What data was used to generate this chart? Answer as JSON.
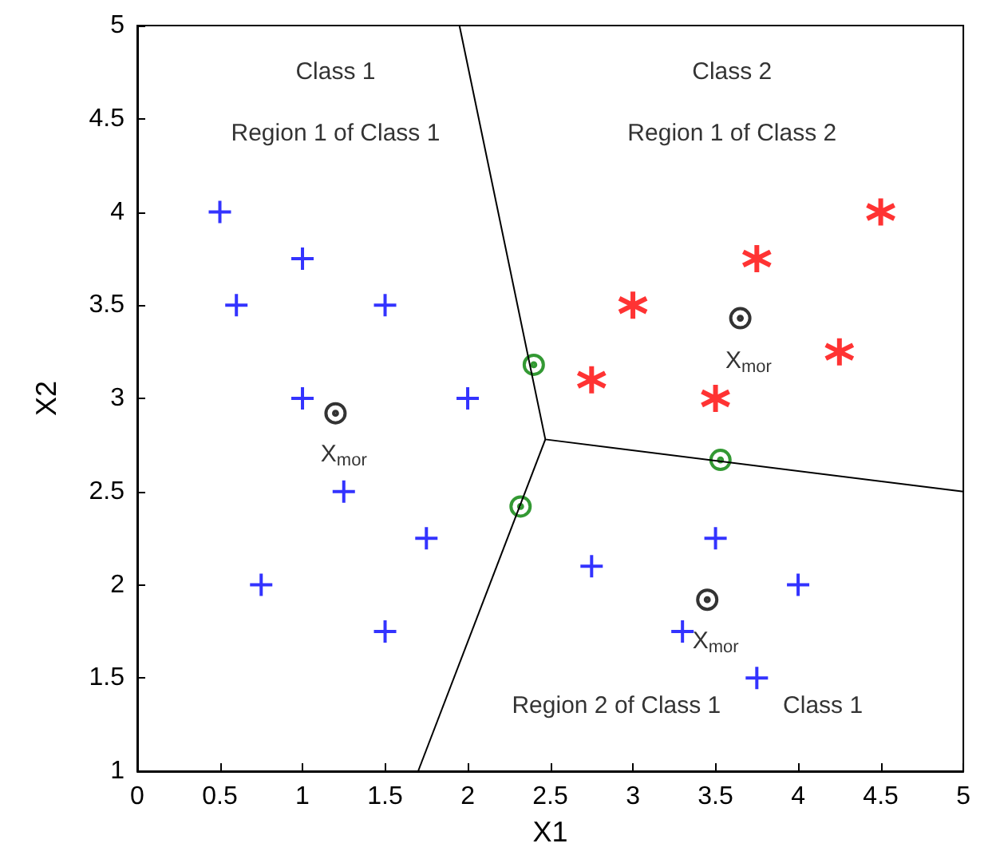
{
  "chart_data": {
    "type": "scatter",
    "xlabel": "X1",
    "ylabel": "X2",
    "xlim": [
      0,
      5
    ],
    "ylim": [
      1,
      5
    ],
    "xticks": [
      0,
      0.5,
      1,
      1.5,
      2,
      2.5,
      3,
      3.5,
      4,
      4.5,
      5
    ],
    "yticks": [
      1,
      1.5,
      2,
      2.5,
      3,
      3.5,
      4,
      4.5,
      5
    ],
    "grid": false,
    "series": [
      {
        "color": "#0000ff",
        "marker": "cross",
        "x": [
          0.5,
          1,
          0.6,
          1.5,
          1,
          2,
          1.25,
          1.75,
          0.75,
          1.5,
          2.75,
          3.5,
          4,
          3.3,
          3.75
        ],
        "values": [
          4,
          3.75,
          3.5,
          3.5,
          3,
          3,
          2.5,
          2.25,
          2,
          1.75,
          2.1,
          2.25,
          2,
          1.75,
          1.5
        ]
      },
      {
        "color": "#ff0000",
        "x": [
          2.75,
          3,
          3.75,
          4.5,
          4.25,
          3.5
        ],
        "values": [
          3.1,
          3.5,
          3.75,
          4,
          3.25,
          3
        ]
      },
      {
        "color": "#000000",
        "marker": "circle",
        "x": [
          1.2,
          3.65,
          3.45
        ],
        "values": [
          2.92,
          3.43,
          1.92
        ]
      },
      {
        "color": "#008000",
        "marker": "circle",
        "x": [
          2.4,
          2.32,
          3.53
        ],
        "values": [
          3.18,
          2.42,
          2.67
        ]
      },
      {
        "type": "line",
        "color": "#000000",
        "marker": "none",
        "x": [
          1.95,
          2.47,
          5
        ],
        "values": [
          5,
          2.78,
          2.5
        ]
      },
      {
        "type": "line",
        "color": "#000000",
        "marker": "none",
        "x": [
          2.47,
          1.7
        ],
        "values": [
          2.78,
          1
        ]
      }
    ],
    "annotations": [
      "Class 1",
      "Region 1 of Class 1",
      "Class 2",
      "Region 1 of Class 2",
      "Region 2 of Class 1",
      "Class 1",
      "X$_{mor}$",
      "X$_{mor}$",
      "X$_{mor}$"
    ]
  }
}
